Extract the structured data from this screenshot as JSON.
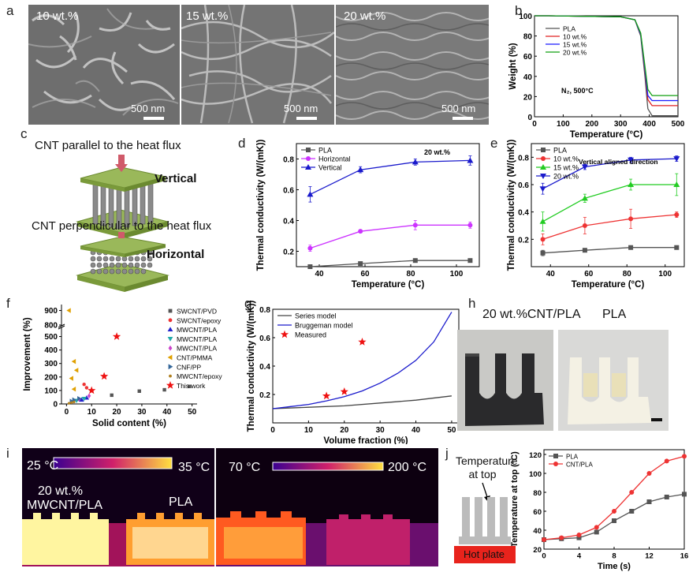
{
  "panels": {
    "a": {
      "label": "a",
      "images": [
        {
          "text": "10 wt.%",
          "scale": "500 nm"
        },
        {
          "text": "15 wt.%",
          "scale": "500 nm"
        },
        {
          "text": "20 wt.%",
          "scale": "500 nm"
        }
      ]
    },
    "b": {
      "label": "b"
    },
    "c": {
      "label": "c",
      "parallel": "CNT parallel to the heat flux",
      "vertical": "Vertical",
      "perpendicular": "CNT perpendicular to the heat flux",
      "horizontal": "Horizontal"
    },
    "d": {
      "label": "d"
    },
    "e": {
      "label": "e"
    },
    "f": {
      "label": "f"
    },
    "g": {
      "label": "g"
    },
    "h": {
      "label": "h",
      "left_title": "20 wt.%CNT/PLA",
      "right_title": "PLA"
    },
    "i": {
      "label": "i",
      "left_low": "25 °C",
      "left_high": "35 °C",
      "right_low": "70 °C",
      "right_high": "200 °C",
      "sample_left_1": "20 wt.%",
      "sample_left_2": "MWCNT/PLA",
      "sample_right": "PLA"
    },
    "j": {
      "label": "j",
      "temp_top_1": "Temperature",
      "temp_top_2": "at top",
      "hot_plate": "Hot plate"
    }
  },
  "chart_data": [
    {
      "id": "b",
      "type": "line",
      "xlabel": "Temperature (°C)",
      "ylabel": "Weight (%)",
      "xlim": [
        0,
        500
      ],
      "ylim": [
        0,
        100
      ],
      "xticks": [
        0,
        100,
        200,
        300,
        400,
        500
      ],
      "yticks": [
        0,
        20,
        40,
        60,
        80,
        100
      ],
      "annotation": "N₂, 500°C",
      "legend_position": "top-left",
      "series": [
        {
          "name": "PLA",
          "color": "#555555",
          "x": [
            0,
            50,
            300,
            350,
            370,
            385,
            395,
            410,
            500
          ],
          "y": [
            100,
            100,
            99,
            96,
            80,
            40,
            8,
            1,
            1
          ]
        },
        {
          "name": "10 wt.%",
          "color": "#e02020",
          "x": [
            0,
            50,
            300,
            350,
            370,
            385,
            395,
            410,
            500
          ],
          "y": [
            100,
            100,
            99,
            96,
            82,
            45,
            17,
            11,
            11
          ]
        },
        {
          "name": "15 wt.%",
          "color": "#1a1aff",
          "x": [
            0,
            50,
            300,
            350,
            370,
            385,
            395,
            410,
            500
          ],
          "y": [
            100,
            100,
            99,
            96,
            82,
            47,
            21,
            16,
            16
          ]
        },
        {
          "name": "20 wt.%",
          "color": "#12a012",
          "x": [
            0,
            50,
            300,
            350,
            370,
            385,
            395,
            410,
            500
          ],
          "y": [
            100,
            100,
            99,
            96,
            83,
            50,
            27,
            21,
            21
          ]
        }
      ]
    },
    {
      "id": "d",
      "type": "line",
      "xlabel": "Temperature (°C)",
      "ylabel": "Thermal conductivity (W/(mK))",
      "xlim": [
        30,
        110
      ],
      "ylim": [
        0.1,
        0.9
      ],
      "xticks": [
        40,
        60,
        80,
        100
      ],
      "yticks": [
        0.2,
        0.4,
        0.6,
        0.8
      ],
      "annotation": "20 wt.%",
      "legend_position": "top-left",
      "series": [
        {
          "name": "PLA",
          "color": "#555555",
          "marker": "square",
          "x": [
            36,
            58,
            82,
            106
          ],
          "y": [
            0.1,
            0.12,
            0.14,
            0.14
          ],
          "err": [
            0.01,
            0.01,
            0.01,
            0.01
          ]
        },
        {
          "name": "Horizontal",
          "color": "#cc33ff",
          "marker": "circle",
          "x": [
            36,
            58,
            82,
            106
          ],
          "y": [
            0.22,
            0.33,
            0.37,
            0.37
          ],
          "err": [
            0.02,
            0.01,
            0.03,
            0.02
          ]
        },
        {
          "name": "Vertical",
          "color": "#1a1acc",
          "marker": "triangle",
          "x": [
            36,
            58,
            82,
            106
          ],
          "y": [
            0.57,
            0.73,
            0.78,
            0.79
          ],
          "err": [
            0.05,
            0.02,
            0.02,
            0.03
          ]
        }
      ]
    },
    {
      "id": "e",
      "type": "line",
      "xlabel": "Temperature (°C)",
      "ylabel": "Thermal conductivity (W/(mK))",
      "xlim": [
        30,
        110
      ],
      "ylim": [
        0.0,
        0.9
      ],
      "xticks": [
        40,
        60,
        80,
        100
      ],
      "yticks": [
        0.2,
        0.4,
        0.6,
        0.8
      ],
      "annotation": "Vertical aligned direction",
      "legend_position": "top-left",
      "series": [
        {
          "name": "PLA",
          "color": "#555555",
          "marker": "square",
          "x": [
            36,
            58,
            82,
            106
          ],
          "y": [
            0.1,
            0.12,
            0.14,
            0.14
          ],
          "err": [
            0.02,
            0.01,
            0.01,
            0.01
          ]
        },
        {
          "name": "10 wt.%",
          "color": "#ee3333",
          "marker": "circle",
          "x": [
            36,
            58,
            82,
            106
          ],
          "y": [
            0.2,
            0.3,
            0.35,
            0.38
          ],
          "err": [
            0.04,
            0.06,
            0.07,
            0.02
          ]
        },
        {
          "name": "15 wt.%",
          "color": "#22cc22",
          "marker": "triangle-up",
          "x": [
            36,
            58,
            82,
            106
          ],
          "y": [
            0.33,
            0.5,
            0.6,
            0.6
          ],
          "err": [
            0.07,
            0.03,
            0.04,
            0.08
          ]
        },
        {
          "name": "20 wt.%",
          "color": "#1a1acc",
          "marker": "triangle-down",
          "x": [
            36,
            58,
            82,
            106
          ],
          "y": [
            0.57,
            0.73,
            0.78,
            0.79
          ],
          "err": [
            0.04,
            0.02,
            0.02,
            0.02
          ]
        }
      ]
    },
    {
      "id": "f",
      "type": "scatter",
      "xlabel": "Solid content (%)",
      "ylabel": "Improvement (%)",
      "xlim": [
        -2,
        52
      ],
      "xticks": [
        0,
        10,
        20,
        30,
        40,
        50
      ],
      "yticks_lower": [
        0,
        100,
        200,
        300,
        400,
        500
      ],
      "yticks_upper": [
        800,
        900
      ],
      "axis_break": [
        550,
        780
      ],
      "legend_position": "top-right",
      "series": [
        {
          "name": "SWCNT/PVD",
          "color": "#555555",
          "marker": "square",
          "x": [
            18,
            29,
            39,
            49
          ],
          "y": [
            65,
            95,
            105,
            130
          ]
        },
        {
          "name": "SWCNT/epoxy",
          "color": "#ee3333",
          "marker": "circle",
          "x": [
            7,
            8
          ],
          "y": [
            145,
            120
          ]
        },
        {
          "name": "MWCNT/PLA",
          "color": "#2222cc",
          "marker": "triangle-up",
          "x": [
            6,
            8
          ],
          "y": [
            30,
            45
          ]
        },
        {
          "name": "MWCNT/PLA",
          "color": "#22aaaa",
          "marker": "triangle-down",
          "x": [
            4,
            7
          ],
          "y": [
            25,
            40
          ]
        },
        {
          "name": "MWCNT/PLA",
          "color": "#cc44cc",
          "marker": "diamond",
          "x": [
            5,
            9
          ],
          "y": [
            35,
            60
          ]
        },
        {
          "name": "CNT/PMMA",
          "color": "#e0a000",
          "marker": "triangle-left",
          "x": [
            1,
            3,
            4,
            2,
            3
          ],
          "y": [
            900,
            315,
            250,
            190,
            110
          ]
        },
        {
          "name": "CNF/PP",
          "color": "#336699",
          "marker": "triangle-right",
          "x": [
            2,
            3,
            5
          ],
          "y": [
            20,
            30,
            40
          ]
        },
        {
          "name": "MWCNT/epoxy",
          "color": "#b08020",
          "marker": "hexagon",
          "x": [
            1,
            2,
            3
          ],
          "y": [
            5,
            10,
            15
          ]
        },
        {
          "name": "This work",
          "color": "#ee1111",
          "marker": "star",
          "x": [
            10,
            15,
            20
          ],
          "y": [
            100,
            205,
            500
          ]
        }
      ]
    },
    {
      "id": "g",
      "type": "line",
      "xlabel": "Volume fraction (%)",
      "ylabel": "Thermal conductivity (W/(mK))",
      "xlim": [
        0,
        52
      ],
      "ylim": [
        0.0,
        0.8
      ],
      "xticks": [
        0,
        10,
        20,
        30,
        40,
        50
      ],
      "yticks": [
        0.2,
        0.4,
        0.6,
        0.8
      ],
      "legend_position": "top-left",
      "series": [
        {
          "name": "Series model",
          "color": "#444444",
          "x": [
            0,
            10,
            20,
            30,
            40,
            50
          ],
          "y": [
            0.1,
            0.11,
            0.12,
            0.14,
            0.16,
            0.19
          ]
        },
        {
          "name": "Bruggeman model",
          "color": "#1a1acc",
          "x": [
            0,
            5,
            10,
            15,
            20,
            25,
            30,
            35,
            40,
            45,
            50
          ],
          "y": [
            0.1,
            0.115,
            0.13,
            0.155,
            0.185,
            0.225,
            0.28,
            0.35,
            0.44,
            0.57,
            0.78
          ]
        },
        {
          "name": "Measured",
          "color": "#ee1111",
          "marker": "star",
          "x": [
            15,
            20,
            25
          ],
          "y": [
            0.19,
            0.22,
            0.57
          ]
        }
      ]
    },
    {
      "id": "j",
      "type": "line",
      "xlabel": "Time (s)",
      "ylabel": "Temperature at top (°C)",
      "xlim": [
        0,
        16
      ],
      "ylim": [
        20,
        125
      ],
      "xticks": [
        0,
        4,
        8,
        12,
        16
      ],
      "yticks": [
        20,
        40,
        60,
        80,
        100,
        120
      ],
      "legend_position": "top-left",
      "series": [
        {
          "name": "PLA",
          "color": "#555555",
          "marker": "square",
          "x": [
            0,
            2,
            4,
            6,
            8,
            10,
            12,
            14,
            16
          ],
          "y": [
            30,
            31,
            32,
            38,
            50,
            60,
            70,
            75,
            78
          ]
        },
        {
          "name": "CNT/PLA",
          "color": "#ee3333",
          "marker": "circle",
          "x": [
            0,
            2,
            4,
            6,
            8,
            10,
            12,
            14,
            16
          ],
          "y": [
            30,
            32,
            35,
            43,
            60,
            80,
            100,
            113,
            118
          ]
        }
      ]
    }
  ]
}
